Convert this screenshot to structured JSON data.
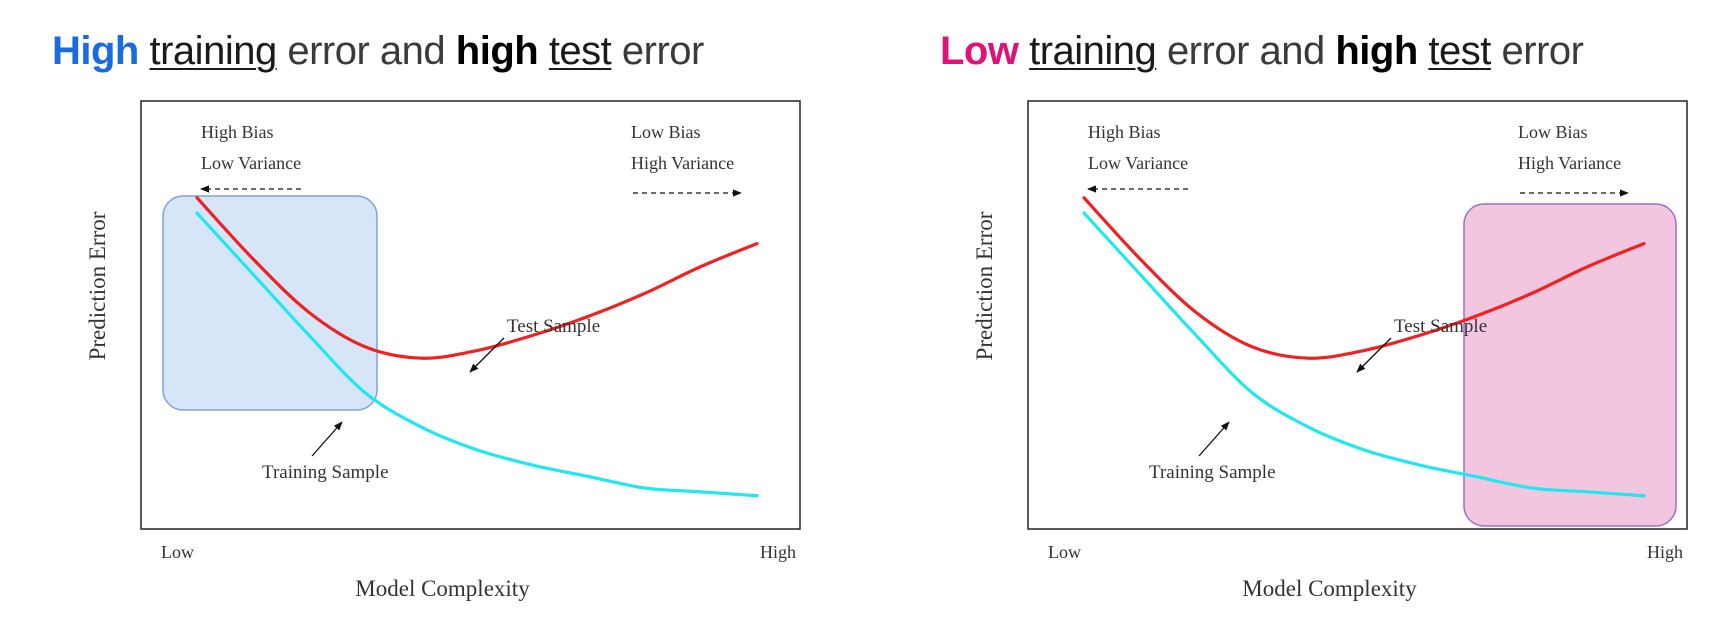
{
  "panels": [
    {
      "title": {
        "emph": "High",
        "w1": "training",
        "w2": "error and",
        "w3": "high",
        "w4": "test",
        "w5": "error"
      },
      "highlight": "underfit",
      "colors": {
        "title_accent": "#1a6be0",
        "box_fill": "#cfe2f7",
        "box_stroke": "#7fa3d6"
      }
    },
    {
      "title": {
        "emph": "Low",
        "w1": "training",
        "w2": "error and",
        "w3": "high",
        "w4": "test",
        "w5": "error"
      },
      "highlight": "overfit",
      "colors": {
        "title_accent": "#e0127a",
        "box_fill": "#f0bcd8",
        "box_stroke": "#9b70c8"
      }
    }
  ],
  "chart_data": [
    {
      "type": "line",
      "xlabel": "Model Complexity",
      "ylabel": "Prediction Error",
      "x_tick_labels": [
        "Low",
        "High"
      ],
      "annotations": {
        "left_line1": "High Bias",
        "left_line2": "Low Variance",
        "right_line1": "Low Bias",
        "right_line2": "High Variance"
      },
      "series": [
        {
          "name": "Test Sample",
          "color": "#ee2222",
          "x": [
            0,
            0.1,
            0.2,
            0.3,
            0.4,
            0.5,
            0.6,
            0.7,
            0.8,
            0.9,
            1.0
          ],
          "values": [
            0.82,
            0.66,
            0.52,
            0.43,
            0.4,
            0.42,
            0.46,
            0.51,
            0.57,
            0.64,
            0.7
          ]
        },
        {
          "name": "Training Sample",
          "color": "#22e6f0",
          "x": [
            0,
            0.1,
            0.2,
            0.3,
            0.4,
            0.5,
            0.6,
            0.7,
            0.8,
            0.9,
            1.0
          ],
          "values": [
            0.78,
            0.62,
            0.46,
            0.31,
            0.22,
            0.16,
            0.12,
            0.09,
            0.06,
            0.05,
            0.04
          ]
        }
      ]
    },
    {
      "type": "line",
      "xlabel": "Model Complexity",
      "ylabel": "Prediction Error",
      "x_tick_labels": [
        "Low",
        "High"
      ],
      "annotations": {
        "left_line1": "High Bias",
        "left_line2": "Low Variance",
        "right_line1": "Low Bias",
        "right_line2": "High Variance"
      },
      "series": [
        {
          "name": "Test Sample",
          "color": "#ee2222",
          "x": [
            0,
            0.1,
            0.2,
            0.3,
            0.4,
            0.5,
            0.6,
            0.7,
            0.8,
            0.9,
            1.0
          ],
          "values": [
            0.82,
            0.66,
            0.52,
            0.43,
            0.4,
            0.42,
            0.46,
            0.51,
            0.57,
            0.64,
            0.7
          ]
        },
        {
          "name": "Training Sample",
          "color": "#22e6f0",
          "x": [
            0,
            0.1,
            0.2,
            0.3,
            0.4,
            0.5,
            0.6,
            0.7,
            0.8,
            0.9,
            1.0
          ],
          "values": [
            0.78,
            0.62,
            0.46,
            0.31,
            0.22,
            0.16,
            0.12,
            0.09,
            0.06,
            0.05,
            0.04
          ]
        }
      ]
    }
  ]
}
